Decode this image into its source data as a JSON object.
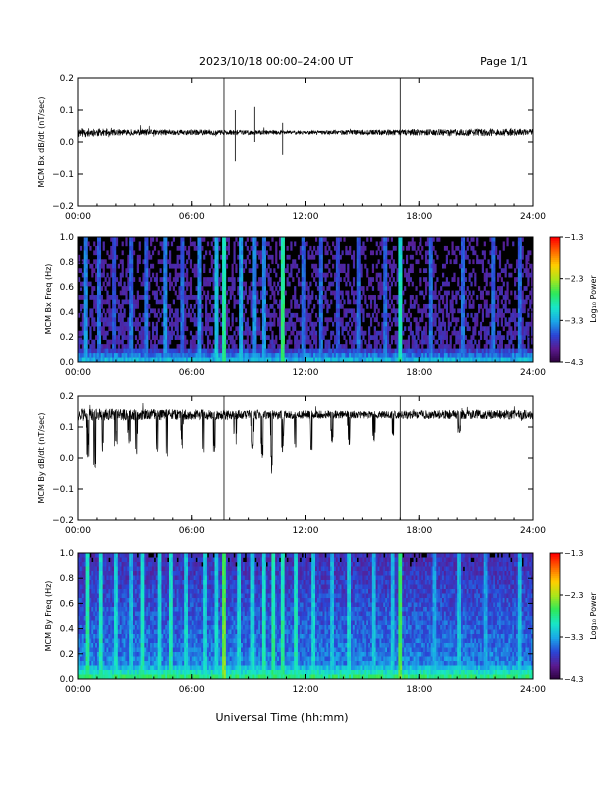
{
  "header": {
    "title": "2023/10/18  00:00–24:00 UT",
    "page": "Page 1/1"
  },
  "x_axis": {
    "label": "Universal Time (hh:mm)",
    "ticks": [
      "00:00",
      "06:00",
      "12:00",
      "18:00",
      "24:00"
    ]
  },
  "colors": {
    "trace": "#000000",
    "spectrogram_background": "#000000",
    "colormap": [
      "#2a0038",
      "#5b1a8f",
      "#2b45d6",
      "#1aa7e8",
      "#18e6c9",
      "#2ee85a",
      "#a8e61c",
      "#ffd000",
      "#ff6a00",
      "#ff0000"
    ]
  },
  "chart_data": [
    {
      "type": "line",
      "ylabel": "MCM Bx dB/dt (nT/sec)",
      "xlim": [
        0,
        24
      ],
      "ylim": [
        -0.2,
        0.2
      ],
      "yticks": [
        "0.2",
        "0.1",
        "0.0",
        "−0.1",
        "−0.2"
      ],
      "baseline": 0.03,
      "noise_amplitude": [
        {
          "x": 0,
          "value": 0.015
        },
        {
          "x": 2,
          "value": 0.01
        },
        {
          "x": 8,
          "value": 0.008
        },
        {
          "x": 12,
          "value": 0.006
        },
        {
          "x": 18,
          "value": 0.01
        },
        {
          "x": 24,
          "value": 0.012
        }
      ],
      "spikes": [
        {
          "x": 7.7,
          "max": 0.21,
          "min": -0.2
        },
        {
          "x": 8.3,
          "max": 0.1,
          "min": -0.06
        },
        {
          "x": 9.3,
          "max": 0.11,
          "min": 0.0
        },
        {
          "x": 10.8,
          "max": 0.06,
          "min": -0.04
        },
        {
          "x": 17.0,
          "max": 0.21,
          "min": -0.2
        }
      ],
      "grid": false,
      "legend": "none"
    },
    {
      "type": "heatmap",
      "ylabel": "MCM Bx Freq (Hz)",
      "xlim": [
        0,
        24
      ],
      "ylim": [
        0.0,
        1.0
      ],
      "yticks": [
        "1.0",
        "0.8",
        "0.6",
        "0.4",
        "0.2",
        "0.0"
      ],
      "colorbar": {
        "label": "Log₁₀ Power",
        "ticks": [
          "−1.3",
          "−2.3",
          "−3.3",
          "−4.3"
        ],
        "range": [
          -4.3,
          -1.3
        ]
      },
      "base_level": 0.08,
      "bursts": [
        {
          "x": 0.4,
          "level": 0.35
        },
        {
          "x": 1.1,
          "level": 0.3
        },
        {
          "x": 1.9,
          "level": 0.25
        },
        {
          "x": 2.8,
          "level": 0.3
        },
        {
          "x": 3.6,
          "level": 0.3
        },
        {
          "x": 4.6,
          "level": 0.35
        },
        {
          "x": 5.5,
          "level": 0.3
        },
        {
          "x": 6.4,
          "level": 0.35
        },
        {
          "x": 7.3,
          "level": 0.45
        },
        {
          "x": 7.7,
          "level": 0.6
        },
        {
          "x": 8.6,
          "level": 0.4
        },
        {
          "x": 9.3,
          "level": 0.35
        },
        {
          "x": 9.8,
          "level": 0.35
        },
        {
          "x": 10.8,
          "level": 0.65
        },
        {
          "x": 11.9,
          "level": 0.3
        },
        {
          "x": 12.8,
          "level": 0.3
        },
        {
          "x": 13.7,
          "level": 0.25
        },
        {
          "x": 14.8,
          "level": 0.3
        },
        {
          "x": 16.2,
          "level": 0.3
        },
        {
          "x": 17.0,
          "level": 0.55
        },
        {
          "x": 18.6,
          "level": 0.3
        },
        {
          "x": 20.3,
          "level": 0.3
        },
        {
          "x": 21.9,
          "level": 0.3
        },
        {
          "x": 23.3,
          "level": 0.3
        }
      ]
    },
    {
      "type": "line",
      "ylabel": "MCM By dB/dt (nT/sec)",
      "xlim": [
        0,
        24
      ],
      "ylim": [
        -0.2,
        0.2
      ],
      "yticks": [
        "0.2",
        "0.1",
        "0.0",
        "−0.1",
        "−0.2"
      ],
      "baseline": 0.14,
      "noise_amplitude": [
        {
          "x": 0,
          "value": 0.02
        },
        {
          "x": 4,
          "value": 0.018
        },
        {
          "x": 10,
          "value": 0.015
        },
        {
          "x": 16,
          "value": 0.012
        },
        {
          "x": 20,
          "value": 0.015
        },
        {
          "x": 24,
          "value": 0.015
        }
      ],
      "dropouts": [
        {
          "x": 0.5,
          "min": 0.0
        },
        {
          "x": 0.9,
          "min": -0.03
        },
        {
          "x": 1.3,
          "min": 0.02
        },
        {
          "x": 2.0,
          "min": 0.02
        },
        {
          "x": 2.7,
          "min": 0.04
        },
        {
          "x": 3.1,
          "min": 0.01
        },
        {
          "x": 4.2,
          "min": 0.02
        },
        {
          "x": 4.7,
          "min": 0.0
        },
        {
          "x": 5.5,
          "min": 0.03
        },
        {
          "x": 6.6,
          "min": 0.0
        },
        {
          "x": 7.2,
          "min": 0.02
        },
        {
          "x": 8.3,
          "min": 0.04
        },
        {
          "x": 9.2,
          "min": 0.03
        },
        {
          "x": 9.7,
          "min": 0.0
        },
        {
          "x": 10.2,
          "min": -0.05
        },
        {
          "x": 10.8,
          "min": 0.02
        },
        {
          "x": 11.5,
          "min": 0.03
        },
        {
          "x": 12.3,
          "min": 0.02
        },
        {
          "x": 13.4,
          "min": 0.05
        },
        {
          "x": 14.3,
          "min": 0.04
        },
        {
          "x": 15.6,
          "min": 0.05
        },
        {
          "x": 16.6,
          "min": 0.07
        },
        {
          "x": 20.1,
          "min": 0.08
        }
      ],
      "spikes": [
        {
          "x": 7.7,
          "max": 0.2,
          "min": -0.2
        },
        {
          "x": 17.0,
          "max": 0.2,
          "min": -0.2
        }
      ],
      "grid": false,
      "legend": "none"
    },
    {
      "type": "heatmap",
      "ylabel": "MCM By Freq (Hz)",
      "xlim": [
        0,
        24
      ],
      "ylim": [
        0.0,
        1.0
      ],
      "yticks": [
        "1.0",
        "0.8",
        "0.6",
        "0.4",
        "0.2",
        "0.0"
      ],
      "colorbar": {
        "label": "Log₁₀ Power",
        "ticks": [
          "−1.3",
          "−2.3",
          "−3.3",
          "−4.3"
        ],
        "range": [
          -4.3,
          -1.3
        ]
      },
      "base_level": 0.25,
      "bursts": [
        {
          "x": 0.5,
          "level": 0.6
        },
        {
          "x": 1.2,
          "level": 0.55
        },
        {
          "x": 2.0,
          "level": 0.5
        },
        {
          "x": 2.8,
          "level": 0.45
        },
        {
          "x": 3.4,
          "level": 0.55
        },
        {
          "x": 4.3,
          "level": 0.5
        },
        {
          "x": 4.9,
          "level": 0.55
        },
        {
          "x": 5.7,
          "level": 0.5
        },
        {
          "x": 6.7,
          "level": 0.5
        },
        {
          "x": 7.3,
          "level": 0.5
        },
        {
          "x": 7.7,
          "level": 0.75
        },
        {
          "x": 8.5,
          "level": 0.5
        },
        {
          "x": 9.2,
          "level": 0.5
        },
        {
          "x": 9.8,
          "level": 0.55
        },
        {
          "x": 10.3,
          "level": 0.6
        },
        {
          "x": 10.8,
          "level": 0.6
        },
        {
          "x": 11.5,
          "level": 0.55
        },
        {
          "x": 12.4,
          "level": 0.5
        },
        {
          "x": 13.4,
          "level": 0.45
        },
        {
          "x": 14.3,
          "level": 0.5
        },
        {
          "x": 15.6,
          "level": 0.45
        },
        {
          "x": 16.6,
          "level": 0.45
        },
        {
          "x": 17.0,
          "level": 0.7
        },
        {
          "x": 18.8,
          "level": 0.4
        },
        {
          "x": 20.1,
          "level": 0.45
        },
        {
          "x": 21.5,
          "level": 0.4
        },
        {
          "x": 23.3,
          "level": 0.45
        }
      ]
    }
  ]
}
